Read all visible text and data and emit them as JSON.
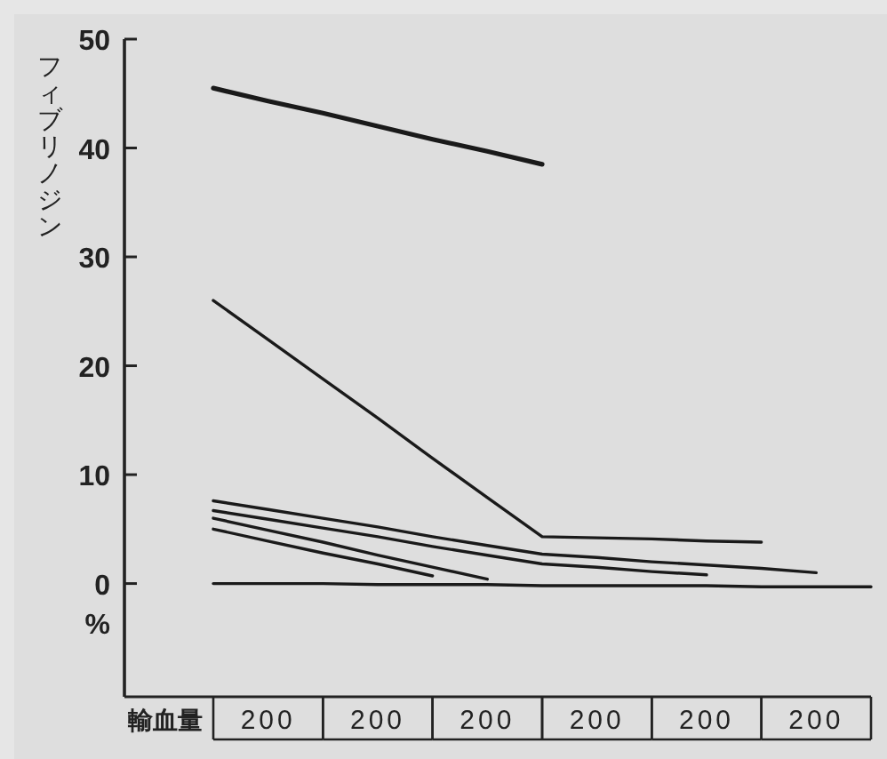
{
  "chart_data": {
    "type": "line",
    "ylabel": "フィブリノジン",
    "xlabel": "輸血量",
    "annotations": [
      "%"
    ],
    "categories": [
      null,
      "200",
      null,
      "200",
      null,
      "200",
      null,
      "200",
      null,
      "200",
      null,
      "200",
      null
    ],
    "ylim": [
      -10.4,
      50
    ],
    "yticks": [
      0,
      10,
      20,
      30,
      40,
      50
    ],
    "series": [
      {
        "color": "#1a1a1a",
        "values": [
          45.5,
          44.3,
          43.2,
          42.0,
          40.8,
          39.7,
          38.5,
          null,
          null,
          null,
          null,
          null,
          null
        ]
      },
      {
        "color": "#1a1a1a",
        "values": [
          26,
          22.4,
          18.8,
          15.2,
          11.5,
          7.9,
          4.3,
          4.2,
          4.1,
          3.9,
          3.8,
          null,
          null
        ]
      },
      {
        "color": "#1a1a1a",
        "values": [
          7.6,
          6.8,
          6.0,
          5.2,
          4.3,
          3.5,
          2.7,
          2.4,
          2.0,
          1.7,
          1.4,
          1.0,
          null
        ]
      },
      {
        "color": "#1a1a1a",
        "values": [
          6.7,
          5.9,
          5.1,
          4.3,
          3.4,
          2.6,
          1.8,
          1.5,
          1.1,
          0.8,
          null,
          null,
          null
        ]
      },
      {
        "color": "#1a1a1a",
        "values": [
          6.0,
          4.9,
          3.8,
          2.6,
          1.5,
          0.4,
          null,
          null,
          null,
          null,
          null,
          null,
          null
        ]
      },
      {
        "color": "#1a1a1a",
        "values": [
          5.0,
          3.9,
          2.8,
          1.8,
          0.7,
          null,
          null,
          null,
          null,
          null,
          null,
          null,
          null
        ]
      },
      {
        "color": "#1a1a1a",
        "values": [
          0,
          0,
          0,
          -0.1,
          -0.1,
          -0.1,
          -0.2,
          -0.2,
          -0.2,
          -0.2,
          -0.3,
          -0.3,
          -0.3
        ]
      }
    ]
  }
}
